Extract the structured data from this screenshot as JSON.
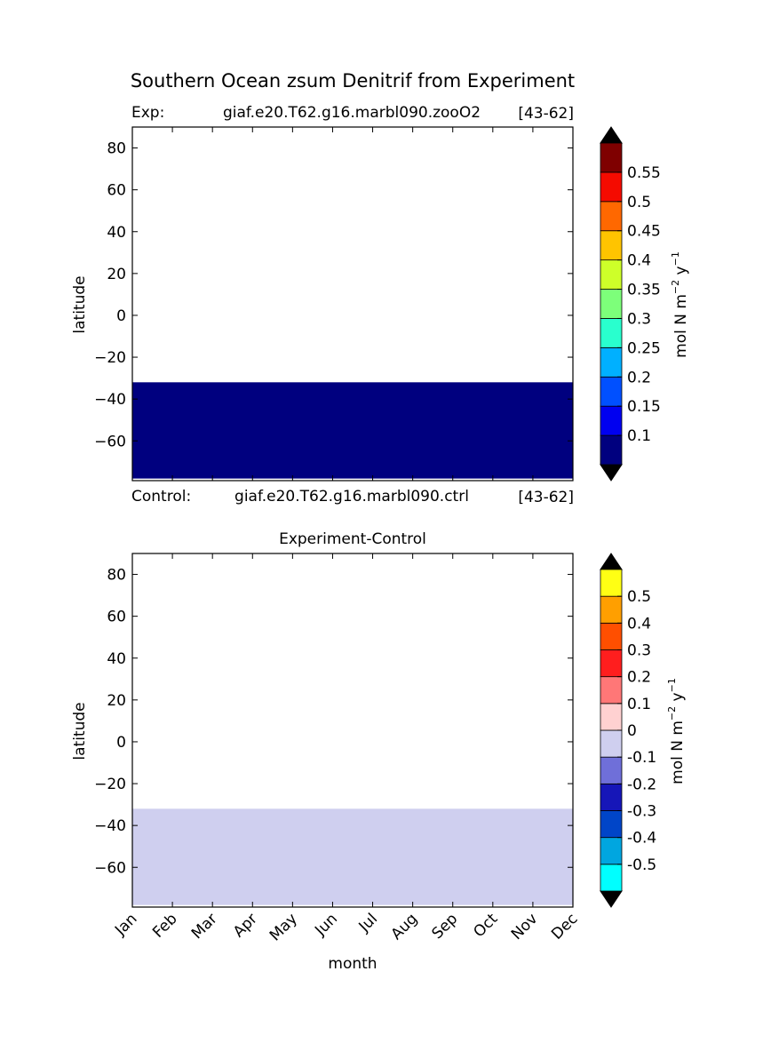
{
  "figure": {
    "title": "Southern Ocean zsum Denitrif from Experiment",
    "xlabel": "month"
  },
  "panels": {
    "top": {
      "left_label": "Exp:",
      "case_name": "giaf.e20.T62.g16.marbl090.zooO2",
      "years": "[43-62]",
      "bottom_left_label": "Control:",
      "bottom_case_name": "giaf.e20.T62.g16.marbl090.ctrl",
      "bottom_years": "[43-62]",
      "ylabel": "latitude",
      "colorbar_label": "mol N m^-2 y^-1",
      "fill_color": "#00007f"
    },
    "bottom": {
      "title": "Experiment-Control",
      "ylabel": "latitude",
      "colorbar_label": "mol N m^-2 y^-1",
      "fill_color": "#cfcfef"
    }
  },
  "chart_data": [
    {
      "type": "heatmap",
      "panel": "top",
      "x_categories": [
        "Jan",
        "Feb",
        "Mar",
        "Apr",
        "May",
        "Jun",
        "Jul",
        "Aug",
        "Sep",
        "Oct",
        "Nov",
        "Dec"
      ],
      "ylim": [
        -79,
        90
      ],
      "yticks": [
        80,
        60,
        40,
        20,
        0,
        -20,
        -40,
        -60
      ],
      "filled_latitude_range": [
        -78,
        -32
      ],
      "grid": false,
      "colorbar": {
        "tick_labels": [
          "0.1",
          "0.15",
          "0.2",
          "0.25",
          "0.3",
          "0.35",
          "0.4",
          "0.45",
          "0.5",
          "0.55"
        ],
        "colors": [
          "#00007f",
          "#0000f0",
          "#0050ff",
          "#00b0ff",
          "#29ffce",
          "#7dff7a",
          "#ceff29",
          "#ffc400",
          "#ff6800",
          "#f50b00",
          "#7f0000"
        ],
        "extend_colors": {
          "min": "#000000",
          "max": "#000000"
        }
      }
    },
    {
      "type": "heatmap",
      "panel": "bottom",
      "x_categories": [
        "Jan",
        "Feb",
        "Mar",
        "Apr",
        "May",
        "Jun",
        "Jul",
        "Aug",
        "Sep",
        "Oct",
        "Nov",
        "Dec"
      ],
      "ylim": [
        -79,
        90
      ],
      "yticks": [
        80,
        60,
        40,
        20,
        0,
        -20,
        -40,
        -60
      ],
      "filled_latitude_range": [
        -78,
        -32
      ],
      "grid": false,
      "colorbar": {
        "tick_labels": [
          "-0.5",
          "-0.4",
          "-0.3",
          "-0.2",
          "-0.1",
          "0",
          "0.1",
          "0.2",
          "0.3",
          "0.4",
          "0.5"
        ],
        "colors": [
          "#00ffff",
          "#00a6e0",
          "#0045c8",
          "#1616b8",
          "#6f6fd9",
          "#cfcfef",
          "#ffd1d1",
          "#ff7777",
          "#ff1e1e",
          "#ff4f00",
          "#ff9f00",
          "#ffff14"
        ],
        "extend_colors": {
          "min": "#000000",
          "max": "#000000"
        }
      }
    }
  ]
}
